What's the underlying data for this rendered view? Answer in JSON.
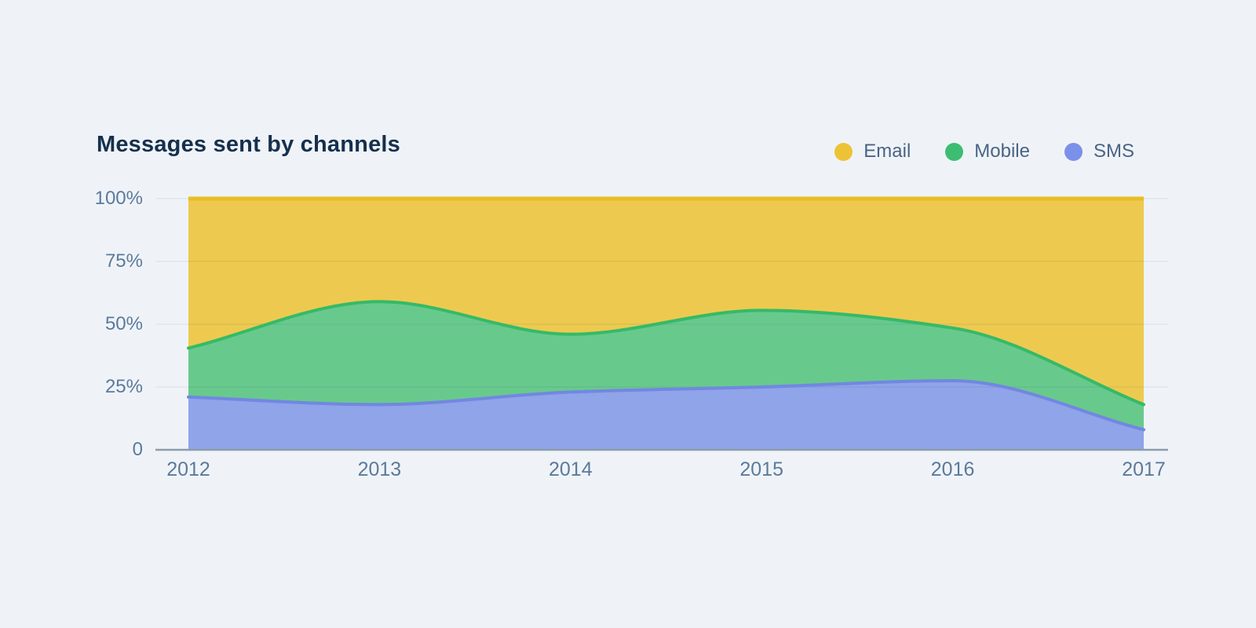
{
  "page": {
    "background": "#EFF3F8"
  },
  "header": {
    "title": "Messages sent by channels",
    "title_color": "#16304C"
  },
  "legend": {
    "position": "top-right",
    "items": [
      {
        "label": "Email",
        "color": "#EDC335"
      },
      {
        "label": "Mobile",
        "color": "#3DBD71"
      },
      {
        "label": "SMS",
        "color": "#7B90E8"
      }
    ],
    "label_color": "#4A6483"
  },
  "chart_data": {
    "type": "area",
    "stacking": "percent",
    "curve": "smooth",
    "title": "Messages sent by channels",
    "x": [
      2012,
      2013,
      2014,
      2015,
      2016,
      2017
    ],
    "x_tick_labels": [
      "2012",
      "2013",
      "2014",
      "2015",
      "2016",
      "2017"
    ],
    "series": [
      {
        "name": "SMS",
        "values": [
          21,
          18,
          23,
          25,
          27.5,
          8
        ],
        "fill": "#8FA4E9",
        "stroke": "#7287E1"
      },
      {
        "name": "Mobile",
        "values": [
          19.5,
          41,
          23,
          30.5,
          21,
          10
        ],
        "fill": "#68C98D",
        "stroke": "#35BA68"
      },
      {
        "name": "Email",
        "values": [
          59.5,
          41,
          54,
          44.5,
          51.5,
          82
        ],
        "fill": "#EDCA4F",
        "stroke": "#E9BD25"
      }
    ],
    "stack_order_bottom_to_top": [
      "SMS",
      "Mobile",
      "Email"
    ],
    "stacked_tops_pct": {
      "sms_top": [
        21,
        18,
        23,
        25,
        27.5,
        8
      ],
      "mobile_top": [
        40.5,
        59,
        46,
        55.5,
        48.5,
        18
      ],
      "email_top": [
        100,
        100,
        100,
        100,
        100,
        100
      ]
    },
    "ylim": [
      0,
      100
    ],
    "y_tick_values": [
      100,
      75,
      50,
      25,
      0
    ],
    "y_tick_labels": [
      "100%",
      "75%",
      "50%",
      "25%",
      "0"
    ],
    "grid": true,
    "legend_position": "top-right",
    "axis_color": "#8C9CAD",
    "grid_color": "#E3E9F2",
    "tick_label_color": "#5C7A99"
  }
}
